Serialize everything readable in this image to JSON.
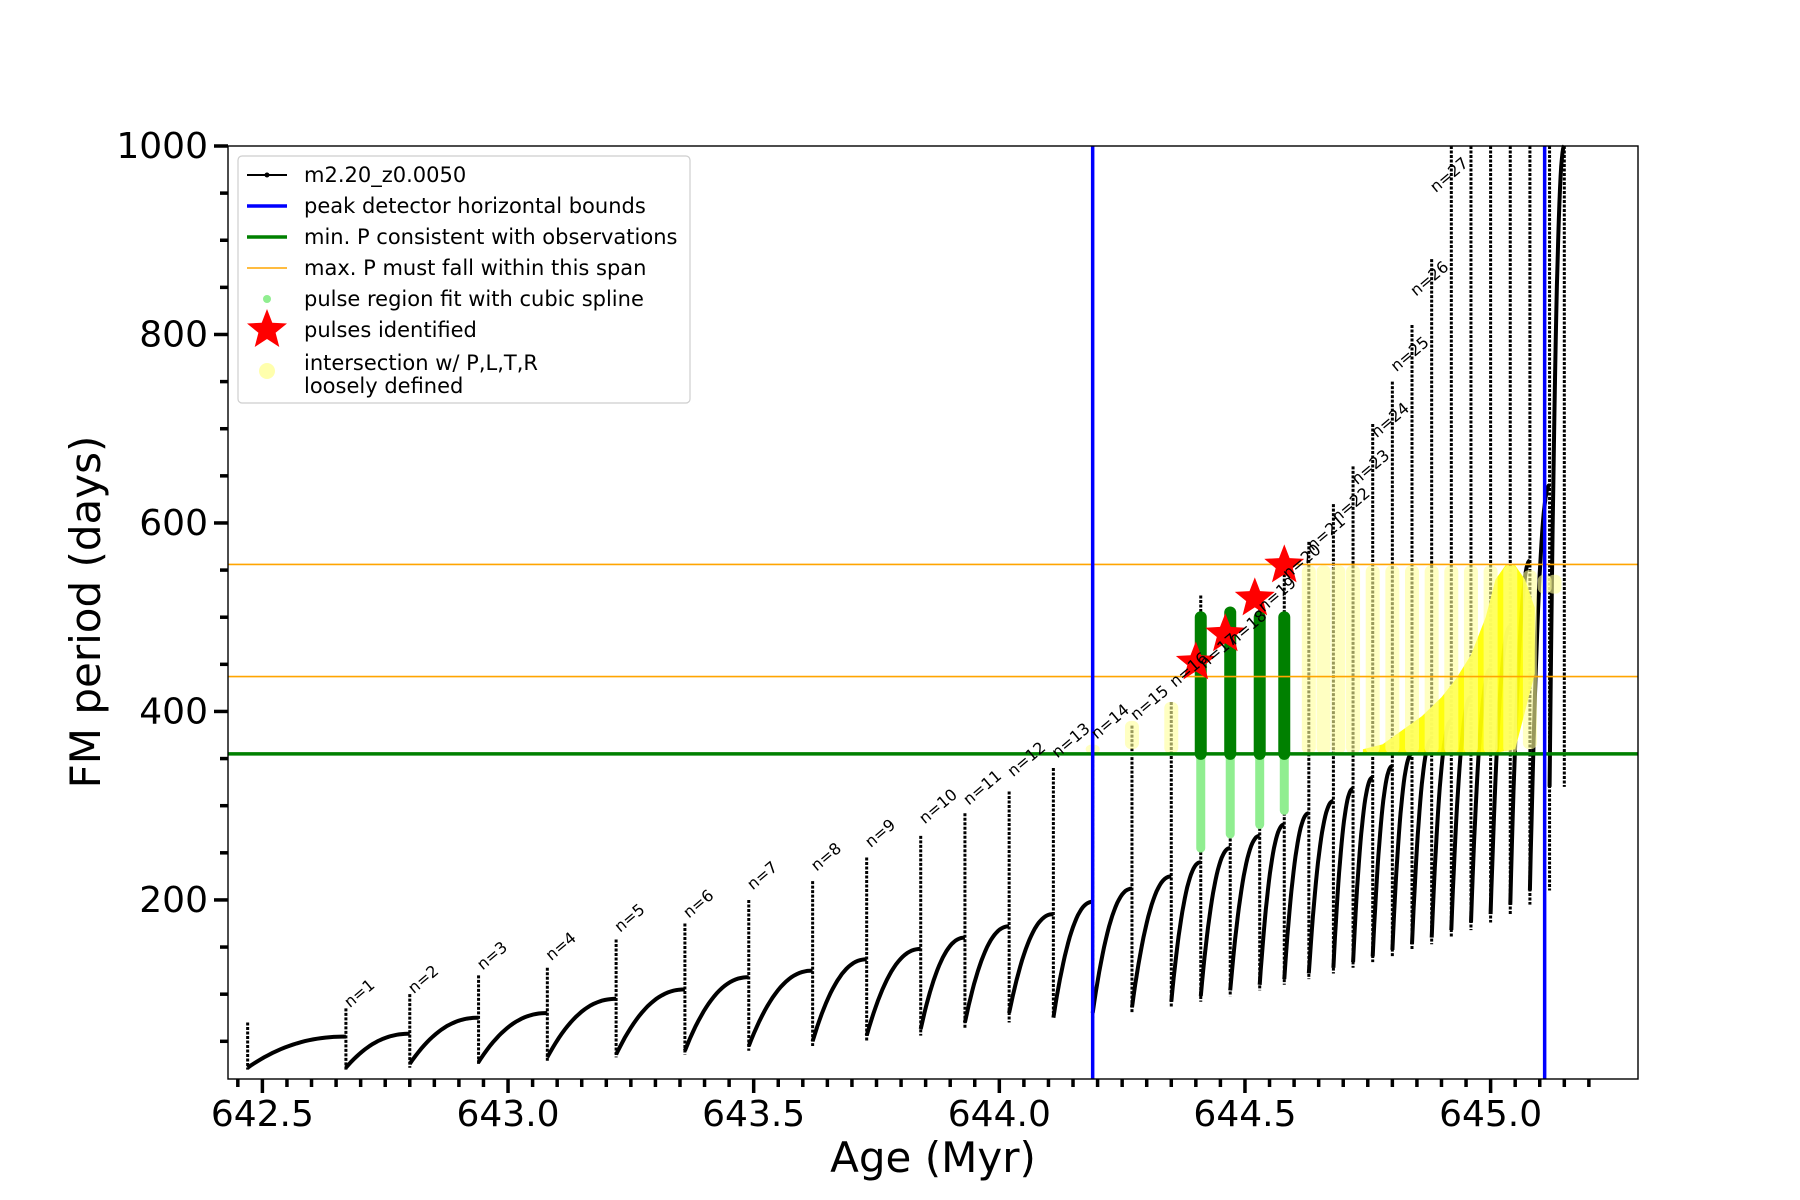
{
  "chart_data": {
    "type": "line",
    "xlabel": "Age (Myr)",
    "ylabel": "FM period (days)",
    "xlim": [
      642.43,
      645.3
    ],
    "ylim": [
      10,
      1000
    ],
    "xticks": [
      642.5,
      643.0,
      643.5,
      644.0,
      644.5,
      645.0
    ],
    "xtick_labels": [
      "642.5",
      "643.0",
      "643.5",
      "644.0",
      "644.5",
      "645.0"
    ],
    "yticks": [
      200,
      400,
      600,
      800,
      1000
    ],
    "ytick_labels": [
      "200",
      "400",
      "600",
      "800",
      "1000"
    ],
    "grid": false,
    "legend_position": "top-left",
    "legend": [
      {
        "label": "m2.20_z0.0050",
        "style": "line-dot",
        "color": "#000000"
      },
      {
        "label": "peak detector horizontal bounds",
        "style": "line",
        "color": "#0000ff"
      },
      {
        "label": "min. P consistent with observations",
        "style": "line",
        "color": "#008000"
      },
      {
        "label": "max. P must fall within this span",
        "style": "thin-line",
        "color": "#ffa500"
      },
      {
        "label": "pulse region fit with cubic spline",
        "style": "dot",
        "color": "#90ee90"
      },
      {
        "label": "pulses identified",
        "style": "star",
        "color": "#ff0000"
      },
      {
        "label": "intersection w/ P,L,T,R\nloosely defined",
        "style": "big-dot",
        "color": "#ffff99"
      }
    ],
    "reference_lines": {
      "vertical_blue": [
        644.19,
        645.11
      ],
      "horizontal_green": 355,
      "horizontal_orange": [
        437,
        556
      ]
    },
    "pulses": [
      {
        "n": "n=1",
        "age": 642.67,
        "base": 20,
        "peak": 55
      },
      {
        "n": "n=2",
        "age": 642.8,
        "base": 22,
        "peak": 58
      },
      {
        "n": "n=3",
        "age": 642.94,
        "base": 26,
        "peak": 75
      },
      {
        "n": "n=4",
        "age": 643.08,
        "base": 28,
        "peak": 80
      },
      {
        "n": "n=5",
        "age": 643.22,
        "base": 33,
        "peak": 95
      },
      {
        "n": "n=6",
        "age": 643.36,
        "base": 36,
        "peak": 105
      },
      {
        "n": "n=7",
        "age": 643.49,
        "base": 40,
        "peak": 118
      },
      {
        "n": "n=8",
        "age": 643.62,
        "base": 45,
        "peak": 125
      },
      {
        "n": "n=9",
        "age": 643.73,
        "base": 50,
        "peak": 137
      },
      {
        "n": "n=10",
        "age": 643.84,
        "base": 56,
        "peak": 148
      },
      {
        "n": "n=11",
        "age": 643.93,
        "base": 63,
        "peak": 160
      },
      {
        "n": "n=12",
        "age": 644.02,
        "base": 70,
        "peak": 172
      },
      {
        "n": "n=13",
        "age": 644.11,
        "base": 80,
        "peak": 185
      },
      {
        "n": "n=14",
        "age": 644.19,
        "base": 75,
        "peak": 198
      },
      {
        "n": "n=15",
        "age": 644.27,
        "base": 80,
        "peak": 212
      },
      {
        "n": "n=16",
        "age": 644.35,
        "base": 86,
        "peak": 225
      },
      {
        "n": "n=17",
        "age": 644.41,
        "base": 92,
        "peak": 240
      },
      {
        "n": "n=18",
        "age": 644.47,
        "base": 98,
        "peak": 255
      },
      {
        "n": "n=19",
        "age": 644.53,
        "base": 104,
        "peak": 268
      },
      {
        "n": "n=20",
        "age": 644.58,
        "base": 110,
        "peak": 280
      },
      {
        "n": "n=21",
        "age": 644.63,
        "base": 116,
        "peak": 292
      },
      {
        "n": "n=22",
        "age": 644.68,
        "base": 122,
        "peak": 305
      },
      {
        "n": "n=23",
        "age": 644.72,
        "base": 128,
        "peak": 318
      },
      {
        "n": "n=24",
        "age": 644.76,
        "base": 134,
        "peak": 330
      },
      {
        "n": "n=25",
        "age": 644.8,
        "base": 140,
        "peak": 342
      },
      {
        "n": "n=26",
        "age": 644.84,
        "base": 147,
        "peak": 355
      },
      {
        "n": "n=27",
        "age": 644.88,
        "base": 153,
        "peak": 370
      },
      {
        "n": "",
        "age": 644.92,
        "base": 160,
        "peak": 390
      },
      {
        "n": "",
        "age": 644.96,
        "base": 168,
        "peak": 415
      },
      {
        "n": "",
        "age": 645.0,
        "base": 176,
        "peak": 445
      },
      {
        "n": "",
        "age": 645.04,
        "base": 185,
        "peak": 490
      },
      {
        "n": "",
        "age": 645.08,
        "base": 195,
        "peak": 560
      },
      {
        "n": "",
        "age": 645.12,
        "base": 210,
        "peak": 640
      },
      {
        "n": "",
        "age": 645.15,
        "base": 320,
        "peak": 1000
      }
    ],
    "pulse_label_heights": [
      85,
      100,
      125,
      135,
      165,
      180,
      210,
      230,
      255,
      280,
      300,
      330,
      350,
      370,
      390,
      425,
      445,
      470,
      505,
      540,
      570,
      600,
      640,
      690,
      760,
      840,
      950
    ],
    "spikes": [
      {
        "age": 642.47,
        "low": 20,
        "high": 70
      },
      {
        "age": 642.67,
        "low": 20,
        "high": 85
      },
      {
        "age": 642.8,
        "low": 22,
        "high": 100
      },
      {
        "age": 642.94,
        "low": 26,
        "high": 120
      },
      {
        "age": 643.08,
        "low": 28,
        "high": 128
      },
      {
        "age": 643.22,
        "low": 33,
        "high": 158
      },
      {
        "age": 643.36,
        "low": 36,
        "high": 175
      },
      {
        "age": 643.49,
        "low": 40,
        "high": 200
      },
      {
        "age": 643.62,
        "low": 45,
        "high": 220
      },
      {
        "age": 643.73,
        "low": 50,
        "high": 245
      },
      {
        "age": 643.84,
        "low": 56,
        "high": 268
      },
      {
        "age": 643.93,
        "low": 63,
        "high": 292
      },
      {
        "age": 644.02,
        "low": 70,
        "high": 315
      },
      {
        "age": 644.11,
        "low": 80,
        "high": 340
      },
      {
        "age": 644.19,
        "low": 75,
        "high": 363
      },
      {
        "age": 644.27,
        "low": 80,
        "high": 385
      },
      {
        "age": 644.35,
        "low": 86,
        "high": 410
      },
      {
        "age": 644.41,
        "low": 92,
        "high": 523
      },
      {
        "age": 644.47,
        "low": 98,
        "high": 480
      },
      {
        "age": 644.53,
        "low": 104,
        "high": 520
      },
      {
        "age": 644.58,
        "low": 110,
        "high": 560
      },
      {
        "age": 644.63,
        "low": 116,
        "high": 580
      },
      {
        "age": 644.68,
        "low": 122,
        "high": 620
      },
      {
        "age": 644.72,
        "low": 128,
        "high": 660
      },
      {
        "age": 644.76,
        "low": 134,
        "high": 705
      },
      {
        "age": 644.8,
        "low": 140,
        "high": 750
      },
      {
        "age": 644.84,
        "low": 147,
        "high": 810
      },
      {
        "age": 644.88,
        "low": 153,
        "high": 880
      },
      {
        "age": 644.92,
        "low": 160,
        "high": 1000
      },
      {
        "age": 644.96,
        "low": 168,
        "high": 1000
      },
      {
        "age": 645.0,
        "low": 176,
        "high": 1000
      },
      {
        "age": 645.04,
        "low": 185,
        "high": 1000
      },
      {
        "age": 645.08,
        "low": 195,
        "high": 1000
      },
      {
        "age": 645.12,
        "low": 210,
        "high": 1000
      },
      {
        "age": 645.15,
        "low": 320,
        "high": 1000
      }
    ],
    "spline_regions": [
      {
        "age": 644.41,
        "green_low": 355,
        "green_high": 500,
        "light_low": 255,
        "light_high": 355
      },
      {
        "age": 644.47,
        "green_low": 355,
        "green_high": 505,
        "light_low": 270,
        "light_high": 355
      },
      {
        "age": 644.53,
        "green_low": 355,
        "green_high": 500,
        "light_low": 280,
        "light_high": 355
      },
      {
        "age": 644.58,
        "green_low": 355,
        "green_high": 500,
        "light_low": 295,
        "light_high": 355
      }
    ],
    "pulses_identified": [
      {
        "age": 644.4,
        "P": 452
      },
      {
        "age": 644.46,
        "P": 482
      },
      {
        "age": 644.52,
        "P": 520
      },
      {
        "age": 644.58,
        "P": 555
      }
    ],
    "loose_intersection_columns": [
      {
        "age": 644.19,
        "low": 355,
        "high": 365
      },
      {
        "age": 644.27,
        "low": 360,
        "high": 390
      },
      {
        "age": 644.35,
        "low": 355,
        "high": 410
      },
      {
        "age": 644.63,
        "low": 355,
        "high": 555
      },
      {
        "age": 644.66,
        "low": 355,
        "high": 555
      },
      {
        "age": 644.69,
        "low": 355,
        "high": 555
      },
      {
        "age": 644.72,
        "low": 355,
        "high": 555
      },
      {
        "age": 644.76,
        "low": 355,
        "high": 555
      },
      {
        "age": 644.8,
        "low": 355,
        "high": 555
      },
      {
        "age": 644.84,
        "low": 355,
        "high": 555
      },
      {
        "age": 644.88,
        "low": 355,
        "high": 555
      },
      {
        "age": 644.92,
        "low": 355,
        "high": 555
      },
      {
        "age": 644.96,
        "low": 355,
        "high": 555
      },
      {
        "age": 645.0,
        "low": 355,
        "high": 555
      },
      {
        "age": 645.04,
        "low": 355,
        "high": 555
      },
      {
        "age": 645.08,
        "low": 360,
        "high": 550
      },
      {
        "age": 645.11,
        "low": 525,
        "high": 545
      },
      {
        "age": 645.13,
        "low": 525,
        "high": 545
      }
    ],
    "dense_yellow_wedge": [
      [
        644.74,
        360
      ],
      [
        644.78,
        365
      ],
      [
        644.82,
        380
      ],
      [
        644.86,
        395
      ],
      [
        644.9,
        415
      ],
      [
        644.93,
        435
      ],
      [
        644.96,
        460
      ],
      [
        644.99,
        500
      ],
      [
        645.01,
        540
      ],
      [
        645.03,
        555
      ],
      [
        645.05,
        555
      ],
      [
        645.07,
        540
      ],
      [
        645.09,
        510
      ],
      [
        645.09,
        440
      ],
      [
        645.05,
        360
      ],
      [
        645.0,
        355
      ],
      [
        644.9,
        355
      ],
      [
        644.8,
        355
      ],
      [
        644.74,
        355
      ]
    ]
  }
}
